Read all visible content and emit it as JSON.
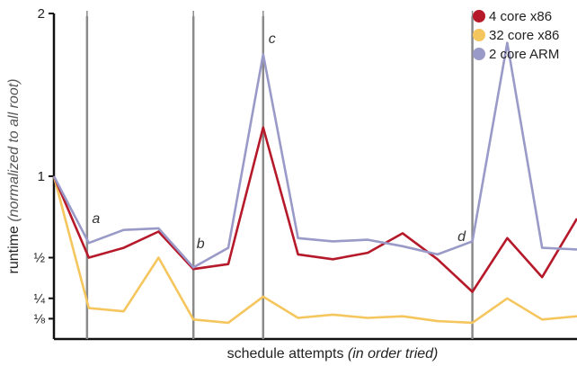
{
  "chart_data": {
    "type": "line",
    "xlabel": "schedule attempts",
    "xlabel_note": "(in order tried)",
    "ylabel": "runtime",
    "ylabel_note": "(normalized to all root)",
    "ylim": [
      0,
      2
    ],
    "ytick_values": [
      0.125,
      0.25,
      0.5,
      1,
      2
    ],
    "ytick_labels": [
      "⅛",
      "¼",
      "½",
      "1",
      "2"
    ],
    "x": [
      0,
      1,
      2,
      3,
      4,
      5,
      6,
      7,
      8,
      9,
      10,
      11,
      12,
      13,
      14,
      15
    ],
    "series": [
      {
        "name": "4 core x86",
        "color": "#b5192a",
        "values": [
          1.0,
          0.5,
          0.56,
          0.66,
          0.43,
          0.46,
          1.3,
          0.52,
          0.49,
          0.53,
          0.65,
          0.49,
          0.29,
          0.62,
          0.38,
          0.74
        ]
      },
      {
        "name": "32 core x86",
        "color": "#f5c65e",
        "values": [
          1.0,
          0.19,
          0.17,
          0.5,
          0.12,
          0.1,
          0.26,
          0.13,
          0.15,
          0.13,
          0.14,
          0.11,
          0.1,
          0.25,
          0.12,
          0.14
        ]
      },
      {
        "name": "2 core ARM",
        "color": "#9a9ac8",
        "values": [
          1.0,
          0.59,
          0.67,
          0.68,
          0.44,
          0.56,
          1.75,
          0.62,
          0.6,
          0.61,
          0.57,
          0.52,
          0.6,
          1.82,
          0.56,
          0.55
        ]
      }
    ],
    "vlines": [
      {
        "x": 0.95,
        "label": "a"
      },
      {
        "x": 4.0,
        "label": "b"
      },
      {
        "x": 6.0,
        "label": "c"
      },
      {
        "x": 12.0,
        "label": "d"
      }
    ],
    "legend_position": "top-right",
    "grid": false
  }
}
